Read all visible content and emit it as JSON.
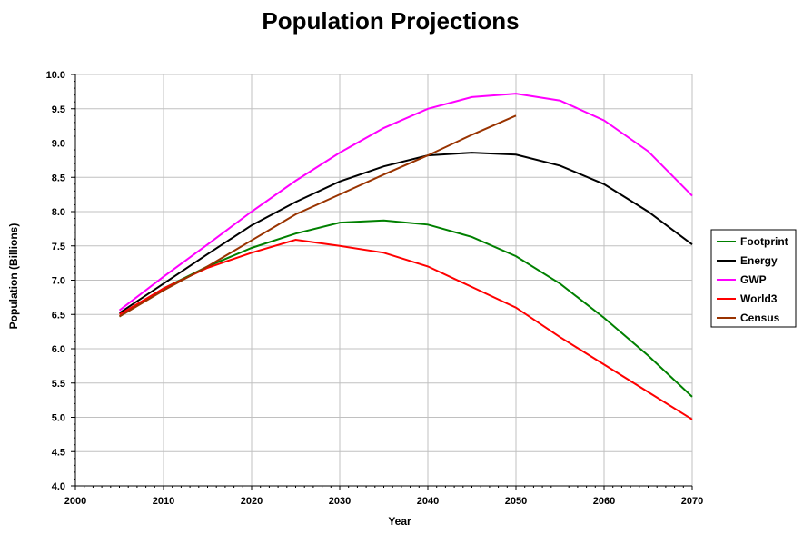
{
  "chart_data": {
    "type": "line",
    "title": "Population Projections",
    "xlabel": "Year",
    "ylabel": "Population (Billions)",
    "xlim": [
      2000,
      2070
    ],
    "ylim": [
      4.0,
      10.0
    ],
    "xticks": [
      "2000",
      "2010",
      "2020",
      "2030",
      "2040",
      "2050",
      "2060",
      "2070"
    ],
    "yticks": [
      "4.0",
      "4.5",
      "5.0",
      "5.5",
      "6.0",
      "6.5",
      "7.0",
      "7.5",
      "8.0",
      "8.5",
      "9.0",
      "9.5",
      "10.0"
    ],
    "grid": true,
    "legend_position": "right",
    "x": [
      2005,
      2010,
      2015,
      2020,
      2025,
      2030,
      2035,
      2040,
      2045,
      2050,
      2055,
      2060,
      2065,
      2070
    ],
    "series": [
      {
        "name": "Footprint",
        "color": "#008000",
        "values": [
          6.47,
          6.88,
          7.2,
          7.47,
          7.68,
          7.84,
          7.87,
          7.81,
          7.63,
          7.35,
          6.95,
          6.45,
          5.9,
          5.3
        ]
      },
      {
        "name": "Energy",
        "color": "#000000",
        "values": [
          6.52,
          6.95,
          7.38,
          7.8,
          8.14,
          8.44,
          8.66,
          8.82,
          8.86,
          8.83,
          8.67,
          8.4,
          8.0,
          7.52
        ]
      },
      {
        "name": "GWP",
        "color": "#ff00ff",
        "values": [
          6.56,
          7.05,
          7.52,
          8.0,
          8.45,
          8.86,
          9.22,
          9.5,
          9.67,
          9.72,
          9.62,
          9.33,
          8.88,
          8.23
        ]
      },
      {
        "name": "World3",
        "color": "#ff0000",
        "values": [
          6.5,
          6.88,
          7.18,
          7.4,
          7.59,
          7.5,
          7.4,
          7.2,
          6.9,
          6.6,
          6.17,
          5.77,
          5.37,
          4.97
        ]
      },
      {
        "name": "Census",
        "color": "#993300",
        "values": [
          6.47,
          6.85,
          7.2,
          7.58,
          7.96,
          8.25,
          8.54,
          8.82,
          9.12,
          9.4,
          null,
          null,
          null,
          null
        ]
      }
    ]
  }
}
